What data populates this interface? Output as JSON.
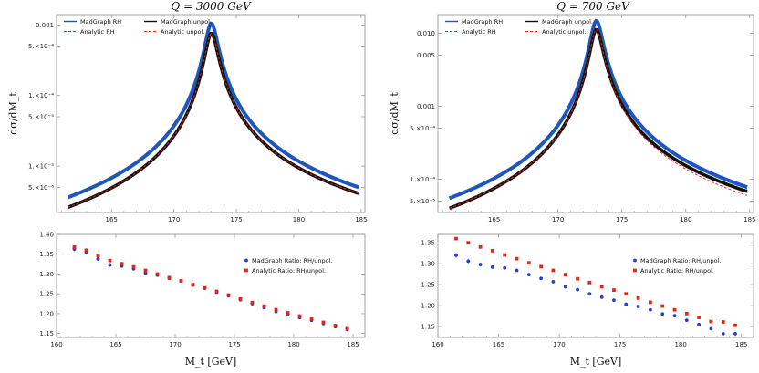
{
  "chart_data": [
    {
      "type": "line",
      "title": "Q = 3000 GeV",
      "xlabel": "",
      "ylabel": "dσ/dM_t",
      "xlim": [
        160.6,
        185.3
      ],
      "ylim": [
        2.2e-06,
        0.0014
      ],
      "yscale": "log",
      "xticks": [
        "165",
        "170",
        "175",
        "180",
        "185"
      ],
      "yticks": [
        "0.001",
        "5.×10⁻⁴",
        "1.×10⁻⁴",
        "5.×10⁻⁵",
        "1.×10⁻⁵",
        "5.×10⁻⁶"
      ],
      "ytick_values": [
        0.001,
        0.0005,
        0.0001,
        5e-05,
        1e-05,
        5e-06
      ],
      "peak": 173.0,
      "series": [
        {
          "name": "MadGraph RH",
          "style": "solid",
          "color": "#1f4fd8",
          "width": 4.0,
          "low": 3.6e-06,
          "high": 5e-06,
          "peak": 0.00105
        },
        {
          "name": "MadGraph unpol.",
          "style": "solid",
          "color": "#111111",
          "width": 3.6,
          "low": 2.6e-06,
          "high": 4.1e-06,
          "peak": 0.00076
        },
        {
          "name": "Analytic RH",
          "style": "dashed",
          "color": "#1b7a2a",
          "width": 1.0,
          "low": 3.6e-06,
          "high": 5e-06,
          "peak": 0.00105
        },
        {
          "name": "Analytic unpol.",
          "style": "dashed",
          "color": "#e3261b",
          "width": 1.0,
          "low": 2.6e-06,
          "high": 4.1e-06,
          "peak": 0.00076
        }
      ]
    },
    {
      "type": "line",
      "title": "Q = 700 GeV",
      "xlabel": "",
      "ylabel": "dσ/dM_t",
      "xlim": [
        160.6,
        185.3
      ],
      "ylim": [
        3.5e-05,
        0.018
      ],
      "yscale": "log",
      "xticks": [
        "165",
        "170",
        "175",
        "180",
        "185"
      ],
      "yticks": [
        "0.010",
        "0.005",
        "0.001",
        "5.×10⁻⁴",
        "1.×10⁻⁴",
        "5.×10⁻⁵"
      ],
      "ytick_values": [
        0.01,
        0.005,
        0.001,
        0.0005,
        0.0001,
        5e-05
      ],
      "peak": 173.0,
      "series": [
        {
          "name": "MadGraph RH",
          "style": "solid",
          "color": "#1f4fd8",
          "width": 4.0,
          "low": 5.5e-05,
          "high": 7.8e-05,
          "peak": 0.0148
        },
        {
          "name": "MadGraph unpol.",
          "style": "solid",
          "color": "#111111",
          "width": 3.6,
          "low": 4e-05,
          "high": 6.8e-05,
          "peak": 0.0112
        },
        {
          "name": "Analytic RH",
          "style": "dashed",
          "color": "#1b7a2a",
          "width": 1.0,
          "low": 5.5e-05,
          "high": 7.4e-05,
          "peak": 0.0148
        },
        {
          "name": "Analytic unpol.",
          "style": "dashed",
          "color": "#e3261b",
          "width": 1.0,
          "low": 4e-05,
          "high": 6e-05,
          "peak": 0.0112
        }
      ]
    },
    {
      "type": "scatter",
      "title": "",
      "xlabel": "M_t [GeV]",
      "ylabel": "",
      "xlim": [
        160,
        186
      ],
      "ylim": [
        1.14,
        1.4
      ],
      "xticks": [
        "160",
        "165",
        "170",
        "175",
        "180",
        "185"
      ],
      "yticks": [
        "1.40",
        "1.35",
        "1.30",
        "1.25",
        "1.20",
        "1.15"
      ],
      "ytick_values": [
        1.4,
        1.35,
        1.3,
        1.25,
        1.2,
        1.15
      ],
      "x": [
        161.5,
        162.5,
        163.5,
        164.5,
        165.5,
        166.5,
        167.5,
        168.5,
        169.5,
        170.5,
        171.5,
        172.5,
        173.5,
        174.5,
        175.5,
        176.5,
        177.5,
        178.5,
        179.5,
        180.5,
        181.5,
        182.5,
        183.5,
        184.5
      ],
      "series": [
        {
          "name": "MadGraph Ratio: RH/unpol.",
          "color": "#1f3fd1",
          "marker": "circle",
          "values": [
            1.363,
            1.355,
            1.338,
            1.323,
            1.32,
            1.313,
            1.302,
            1.297,
            1.289,
            1.282,
            1.272,
            1.264,
            1.254,
            1.245,
            1.235,
            1.225,
            1.215,
            1.205,
            1.197,
            1.19,
            1.183,
            1.175,
            1.167,
            1.16
          ],
          "errors": [
            0.006,
            0.006,
            0.005,
            0.005,
            0.004,
            0.004,
            0.004,
            0.004,
            0.003,
            0.003,
            0.002,
            0.002,
            0.002,
            0.002,
            0.002,
            0.003,
            0.003,
            0.003,
            0.003,
            0.004,
            0.004,
            0.004,
            0.004,
            0.005
          ]
        },
        {
          "name": "Analytic Ratio: RH/unpol.",
          "color": "#e3261b",
          "marker": "square",
          "values": [
            1.368,
            1.36,
            1.346,
            1.334,
            1.326,
            1.318,
            1.309,
            1.3,
            1.291,
            1.283,
            1.273,
            1.265,
            1.256,
            1.247,
            1.237,
            1.228,
            1.219,
            1.21,
            1.202,
            1.194,
            1.186,
            1.178,
            1.17,
            1.162
          ]
        }
      ]
    },
    {
      "type": "scatter",
      "title": "",
      "xlabel": "M_t [GeV]",
      "ylabel": "",
      "xlim": [
        160,
        186
      ],
      "ylim": [
        1.124,
        1.37
      ],
      "xticks": [
        "160",
        "165",
        "170",
        "175",
        "180",
        "185"
      ],
      "yticks": [
        "1.35",
        "1.30",
        "1.25",
        "1.20",
        "1.15"
      ],
      "ytick_values": [
        1.35,
        1.3,
        1.25,
        1.2,
        1.15
      ],
      "x": [
        161.5,
        162.5,
        163.5,
        164.5,
        165.5,
        166.5,
        167.5,
        168.5,
        169.5,
        170.5,
        171.5,
        172.5,
        173.5,
        174.5,
        175.5,
        176.5,
        177.5,
        178.5,
        179.5,
        180.5,
        181.5,
        182.5,
        183.5,
        184.5
      ],
      "series": [
        {
          "name": "MadGraph Ratio: RH/unpol.",
          "color": "#1f3fd1",
          "marker": "circle",
          "values": [
            1.32,
            1.306,
            1.298,
            1.292,
            1.29,
            1.284,
            1.274,
            1.265,
            1.257,
            1.245,
            1.238,
            1.228,
            1.22,
            1.213,
            1.203,
            1.198,
            1.19,
            1.18,
            1.176,
            1.165,
            1.155,
            1.145,
            1.133,
            1.133
          ],
          "errors": [
            0.006,
            0.006,
            0.005,
            0.005,
            0.004,
            0.004,
            0.003,
            0.003,
            0.002,
            0.002,
            0.002,
            0.002,
            0.002,
            0.002,
            0.002,
            0.002,
            0.002,
            0.003,
            0.003,
            0.003,
            0.003,
            0.004,
            0.004,
            0.005
          ]
        },
        {
          "name": "Analytic Ratio: RH/unpol.",
          "color": "#e3261b",
          "marker": "square",
          "values": [
            1.36,
            1.35,
            1.34,
            1.331,
            1.321,
            1.312,
            1.302,
            1.293,
            1.284,
            1.274,
            1.264,
            1.255,
            1.245,
            1.237,
            1.228,
            1.218,
            1.208,
            1.199,
            1.19,
            1.181,
            1.172,
            1.162,
            1.161,
            1.153
          ]
        }
      ]
    }
  ]
}
